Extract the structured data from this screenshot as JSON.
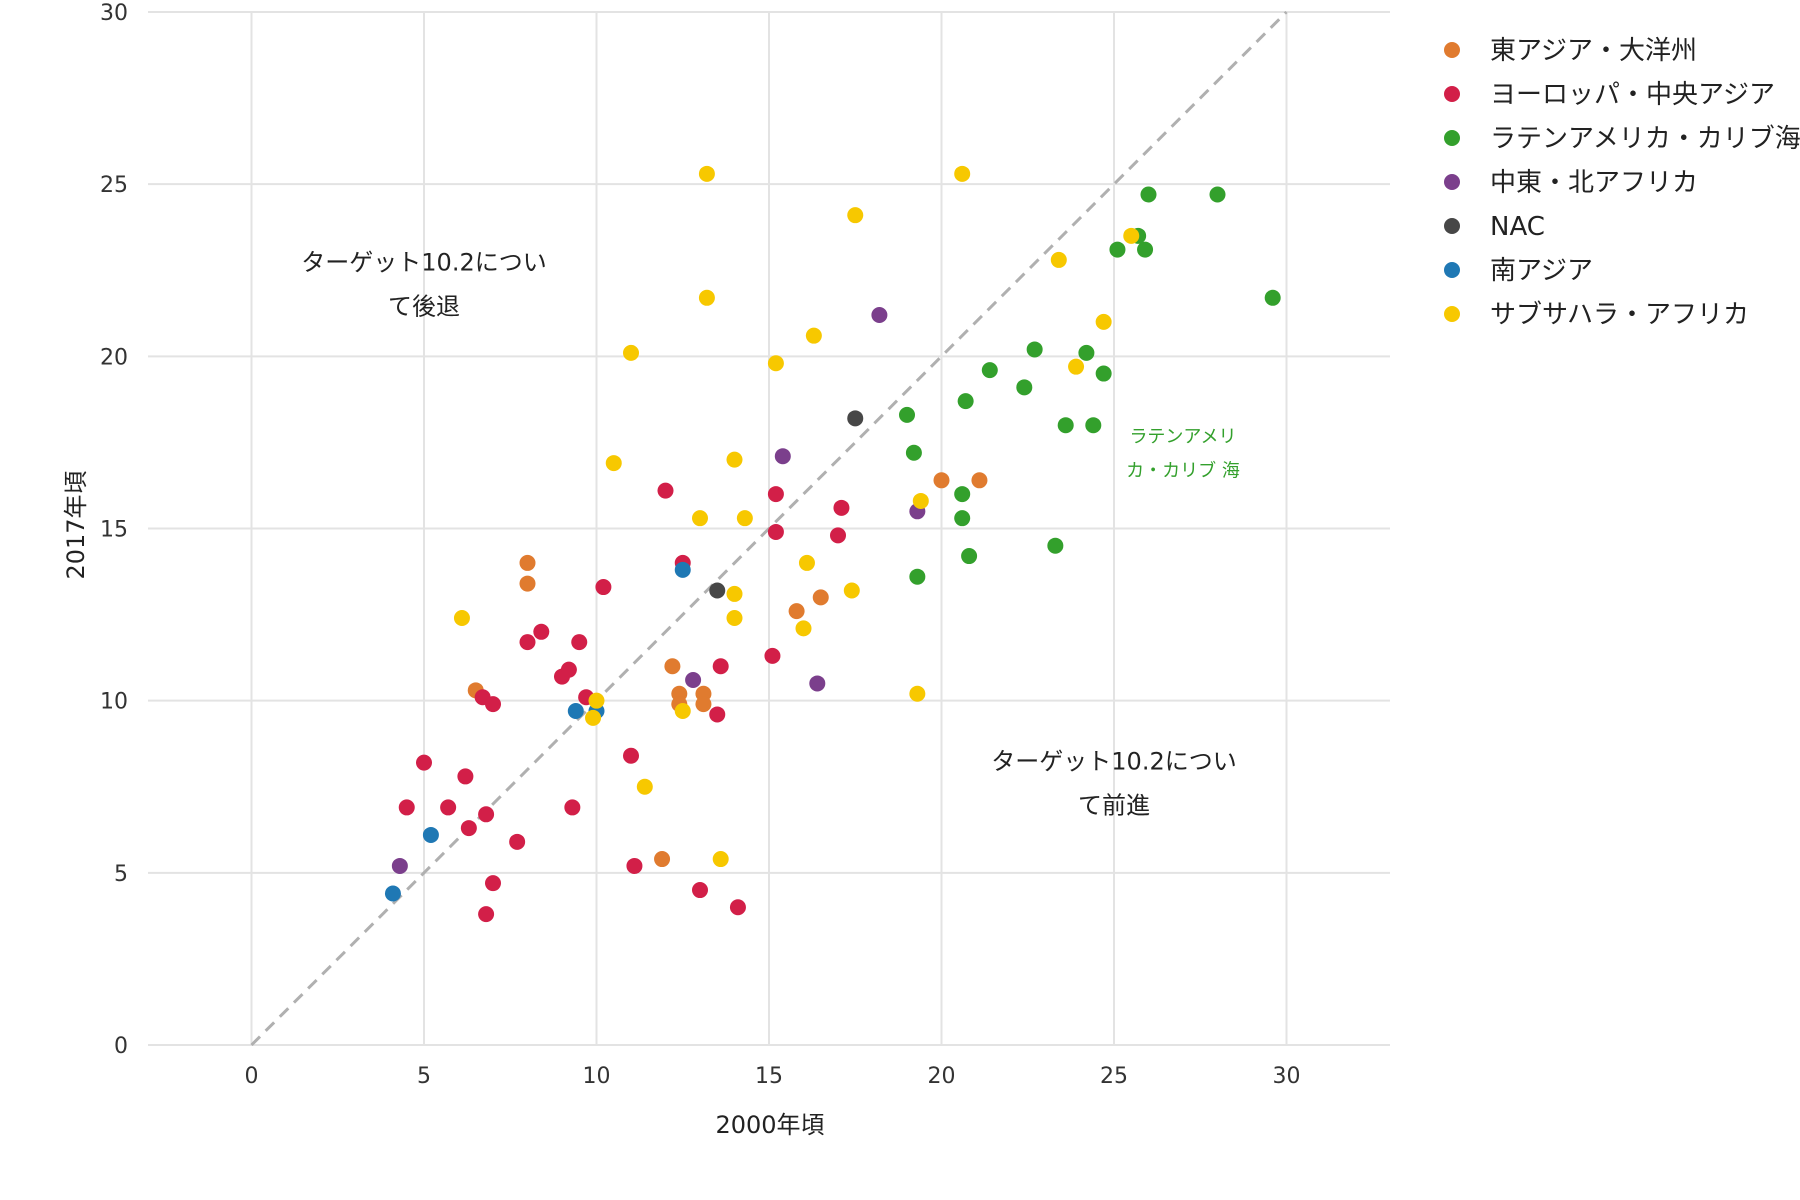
{
  "chart_data": {
    "type": "scatter",
    "xlabel": "2000年頃",
    "ylabel": "2017年頃",
    "xlim": [
      -3,
      33
    ],
    "ylim": [
      0,
      30
    ],
    "x_ticks": [
      0,
      5,
      10,
      15,
      20,
      25,
      30
    ],
    "y_ticks": [
      0,
      5,
      10,
      15,
      20,
      25,
      30
    ],
    "grid": true,
    "reference_line": "y = x (dashed)",
    "legend_position": "right",
    "annotations": [
      {
        "lines": [
          "ターゲット10.2につい",
          "て後退"
        ],
        "x": 5,
        "y": 22.5,
        "color": "#222222"
      },
      {
        "lines": [
          "ターゲット10.2につい",
          "て前進"
        ],
        "x": 25,
        "y": 8,
        "color": "#222222"
      },
      {
        "lines": [
          "ラテンアメリ",
          "カ・カリブ 海"
        ],
        "x": 27,
        "y": 17.5,
        "color": "#33a02c"
      }
    ],
    "series": [
      {
        "name": "東アジア・大洋州",
        "color": "#e07b2f",
        "points": [
          [
            8,
            14
          ],
          [
            8,
            13.4
          ],
          [
            6.5,
            10.3
          ],
          [
            12.2,
            11
          ],
          [
            12.4,
            10.2
          ],
          [
            12.4,
            9.9
          ],
          [
            13.1,
            10.2
          ],
          [
            13.1,
            9.9
          ],
          [
            15.8,
            12.6
          ],
          [
            16.5,
            13
          ],
          [
            20,
            16.4
          ],
          [
            21.1,
            16.4
          ],
          [
            11.9,
            5.4
          ]
        ]
      },
      {
        "name": "ヨーロッパ・中央アジア",
        "color": "#d21f48",
        "points": [
          [
            4.5,
            6.9
          ],
          [
            5,
            8.2
          ],
          [
            5.7,
            6.9
          ],
          [
            6.2,
            7.8
          ],
          [
            6.3,
            6.3
          ],
          [
            6.7,
            10.1
          ],
          [
            6.8,
            6.7
          ],
          [
            6.8,
            3.8
          ],
          [
            7,
            4.7
          ],
          [
            7,
            9.9
          ],
          [
            7.7,
            5.9
          ],
          [
            8,
            11.7
          ],
          [
            8.4,
            12
          ],
          [
            9,
            10.7
          ],
          [
            9.2,
            10.9
          ],
          [
            9.3,
            6.9
          ],
          [
            9.5,
            11.7
          ],
          [
            9.7,
            10.1
          ],
          [
            10.2,
            13.3
          ],
          [
            11,
            8.4
          ],
          [
            11.1,
            5.2
          ],
          [
            12,
            16.1
          ],
          [
            12.5,
            14
          ],
          [
            13,
            4.5
          ],
          [
            13.5,
            9.6
          ],
          [
            13.6,
            11
          ],
          [
            14.1,
            4
          ],
          [
            15.1,
            11.3
          ],
          [
            15.2,
            14.9
          ],
          [
            15.2,
            16
          ],
          [
            17,
            14.8
          ],
          [
            17.1,
            15.6
          ]
        ]
      },
      {
        "name": "ラテンアメリカ・カリブ海",
        "color": "#33a02c",
        "points": [
          [
            19,
            18.3
          ],
          [
            19.2,
            17.2
          ],
          [
            19.3,
            13.6
          ],
          [
            20.6,
            16
          ],
          [
            20.6,
            15.3
          ],
          [
            20.7,
            18.7
          ],
          [
            20.8,
            14.2
          ],
          [
            21.4,
            19.6
          ],
          [
            22.4,
            19.1
          ],
          [
            22.7,
            20.2
          ],
          [
            23.3,
            14.5
          ],
          [
            23.6,
            18
          ],
          [
            24.2,
            20.1
          ],
          [
            24.4,
            18
          ],
          [
            24.7,
            19.5
          ],
          [
            25.1,
            23.1
          ],
          [
            25.7,
            23.5
          ],
          [
            25.9,
            23.1
          ],
          [
            26,
            24.7
          ],
          [
            28,
            24.7
          ],
          [
            29.6,
            21.7
          ]
        ]
      },
      {
        "name": "中東・北アフリカ",
        "color": "#7b3f8c",
        "points": [
          [
            4.3,
            5.2
          ],
          [
            12.8,
            10.6
          ],
          [
            15.4,
            17.1
          ],
          [
            16.4,
            10.5
          ],
          [
            18.2,
            21.2
          ],
          [
            19.3,
            15.5
          ]
        ]
      },
      {
        "name": "NAC",
        "color": "#474747",
        "points": [
          [
            13.5,
            13.2
          ],
          [
            17.5,
            18.2
          ]
        ]
      },
      {
        "name": "南アジア",
        "color": "#1f78b4",
        "points": [
          [
            4.1,
            4.4
          ],
          [
            5.2,
            6.1
          ],
          [
            9.4,
            9.7
          ],
          [
            10,
            9.7
          ],
          [
            12.5,
            13.8
          ]
        ]
      },
      {
        "name": "サブサハラ・アフリカ",
        "color": "#f7c800",
        "points": [
          [
            6.1,
            12.4
          ],
          [
            9.9,
            9.5
          ],
          [
            10,
            10
          ],
          [
            10.5,
            16.9
          ],
          [
            11,
            20.1
          ],
          [
            11.4,
            7.5
          ],
          [
            12.5,
            9.7
          ],
          [
            13,
            15.3
          ],
          [
            13.2,
            25.3
          ],
          [
            13.2,
            21.7
          ],
          [
            13.6,
            5.4
          ],
          [
            14,
            17
          ],
          [
            14,
            13.1
          ],
          [
            14,
            12.4
          ],
          [
            14.3,
            15.3
          ],
          [
            15.2,
            19.8
          ],
          [
            16,
            12.1
          ],
          [
            16.1,
            14
          ],
          [
            16.3,
            20.6
          ],
          [
            17.4,
            13.2
          ],
          [
            17.5,
            24.1
          ],
          [
            19.3,
            10.2
          ],
          [
            19.4,
            15.8
          ],
          [
            20.6,
            25.3
          ],
          [
            23.4,
            22.8
          ],
          [
            23.9,
            19.7
          ],
          [
            24.7,
            21
          ],
          [
            25.5,
            23.5
          ]
        ]
      }
    ]
  }
}
